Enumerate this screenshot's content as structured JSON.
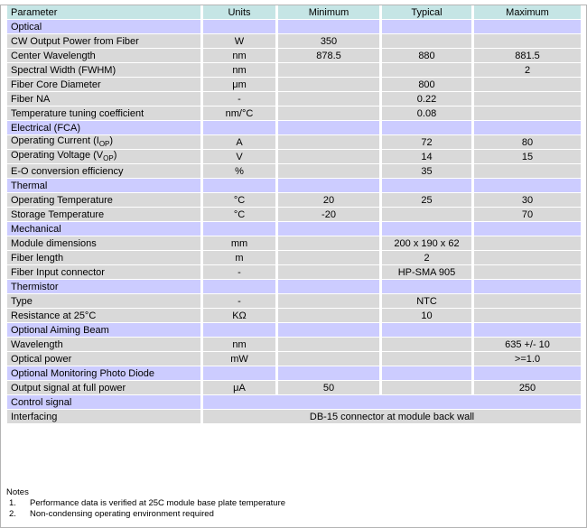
{
  "colors": {
    "header_bg": "#c5e5e5",
    "section_bg": "#ccccff",
    "data_row_bg": "#d9d9d9",
    "text": "#000000",
    "page_bg": "#ffffff"
  },
  "table": {
    "headers": [
      "Parameter",
      "Units",
      "Minimum",
      "Typical",
      "Maximum"
    ],
    "rows": [
      {
        "type": "section",
        "label": "Optical"
      },
      {
        "type": "data",
        "param": "CW Output Power from Fiber",
        "units": "W",
        "min": "350",
        "typ": "",
        "max": ""
      },
      {
        "type": "data",
        "param": "Center Wavelength",
        "units": "nm",
        "min": "878.5",
        "typ": "880",
        "max": "881.5"
      },
      {
        "type": "data",
        "param": "Spectral Width (FWHM)",
        "units": "nm",
        "min": "",
        "typ": "",
        "max": "2"
      },
      {
        "type": "data",
        "param": "Fiber Core Diameter",
        "units": "μm",
        "min": "",
        "typ": "800",
        "max": ""
      },
      {
        "type": "data",
        "param": "Fiber NA",
        "units": "-",
        "min": "",
        "typ": "0.22",
        "max": ""
      },
      {
        "type": "data",
        "param": "Temperature tuning coefficient",
        "units": "nm/°C",
        "min": "",
        "typ": "0.08",
        "max": ""
      },
      {
        "type": "section",
        "label": "Electrical (FCA)"
      },
      {
        "type": "data",
        "param": {
          "pre": "Operating Current (I",
          "sub": "OP",
          "post": ")"
        },
        "units": "A",
        "min": "",
        "typ": "72",
        "max": "80"
      },
      {
        "type": "data",
        "param": {
          "pre": "Operating Voltage (V",
          "sub": "OP",
          "post": ")"
        },
        "units": "V",
        "min": "",
        "typ": "14",
        "max": "15"
      },
      {
        "type": "data",
        "param": "E-O conversion efficiency",
        "units": "%",
        "min": "",
        "typ": "35",
        "max": ""
      },
      {
        "type": "section",
        "label": "Thermal"
      },
      {
        "type": "data",
        "param": "Operating Temperature",
        "units": "°C",
        "min": "20",
        "typ": "25",
        "max": "30"
      },
      {
        "type": "data",
        "param": "Storage Temperature",
        "units": "°C",
        "min": "-20",
        "typ": "",
        "max": "70"
      },
      {
        "type": "section",
        "label": "Mechanical"
      },
      {
        "type": "data",
        "param": "Module dimensions",
        "units": "mm",
        "min": "",
        "typ": "200 x 190 x 62",
        "max": ""
      },
      {
        "type": "data",
        "param": "Fiber length",
        "units": "m",
        "min": "",
        "typ": "2",
        "max": ""
      },
      {
        "type": "data",
        "param": "Fiber Input connector",
        "units": "-",
        "min": "",
        "typ": "HP-SMA 905",
        "max": ""
      },
      {
        "type": "section",
        "label": "Thermistor"
      },
      {
        "type": "data",
        "param": "Type",
        "units": "-",
        "min": "",
        "typ": "NTC",
        "max": ""
      },
      {
        "type": "data",
        "param": "Resistance at 25°C",
        "units": "KΩ",
        "min": "",
        "typ": "10",
        "max": ""
      },
      {
        "type": "section",
        "label": "Optional Aiming Beam"
      },
      {
        "type": "data",
        "param": "Wavelength",
        "units": "nm",
        "min": "",
        "typ": "",
        "max": "635 +/- 10"
      },
      {
        "type": "data",
        "param": "Optical power",
        "units": "mW",
        "min": "",
        "typ": "",
        "max": ">=1.0"
      },
      {
        "type": "section",
        "label": "Optional Monitoring Photo Diode"
      },
      {
        "type": "data",
        "param": "Output signal at full power",
        "units": "μA",
        "min": "50",
        "typ": "",
        "max": "250"
      },
      {
        "type": "section_merged",
        "label": "Control signal"
      },
      {
        "type": "data_merged",
        "param": "Interfacing",
        "value": "DB-15 connector at module back wall"
      }
    ]
  },
  "notes": {
    "title": "Notes",
    "items": [
      {
        "num": "1.",
        "text": "Performance data is verified at 25C module base plate temperature"
      },
      {
        "num": "2.",
        "text": "Non-condensing operating environment required"
      }
    ]
  }
}
